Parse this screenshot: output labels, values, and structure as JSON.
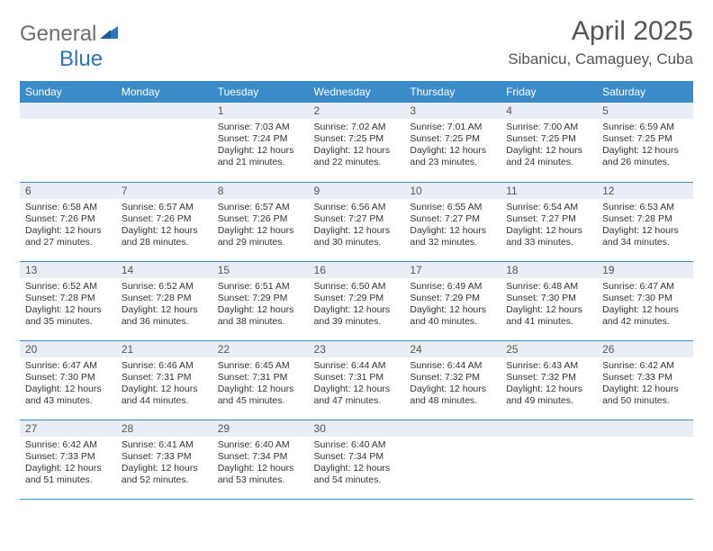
{
  "brand": {
    "name_a": "General",
    "name_b": "Blue"
  },
  "title": "April 2025",
  "location": "Sibanicu, Camaguey, Cuba",
  "colors": {
    "header_bg": "#3b8bc9",
    "header_fg": "#ffffff",
    "daynum_bg": "#e8eef3",
    "text": "#333333",
    "border": "#3b8bc9",
    "logo_gray": "#6e6e6e",
    "logo_blue": "#2f75b5"
  },
  "day_headers": [
    "Sunday",
    "Monday",
    "Tuesday",
    "Wednesday",
    "Thursday",
    "Friday",
    "Saturday"
  ],
  "weeks": [
    [
      {
        "day": "",
        "sunrise": "",
        "sunset": "",
        "daylight": ""
      },
      {
        "day": "",
        "sunrise": "",
        "sunset": "",
        "daylight": ""
      },
      {
        "day": "1",
        "sunrise": "Sunrise: 7:03 AM",
        "sunset": "Sunset: 7:24 PM",
        "daylight": "Daylight: 12 hours and 21 minutes."
      },
      {
        "day": "2",
        "sunrise": "Sunrise: 7:02 AM",
        "sunset": "Sunset: 7:25 PM",
        "daylight": "Daylight: 12 hours and 22 minutes."
      },
      {
        "day": "3",
        "sunrise": "Sunrise: 7:01 AM",
        "sunset": "Sunset: 7:25 PM",
        "daylight": "Daylight: 12 hours and 23 minutes."
      },
      {
        "day": "4",
        "sunrise": "Sunrise: 7:00 AM",
        "sunset": "Sunset: 7:25 PM",
        "daylight": "Daylight: 12 hours and 24 minutes."
      },
      {
        "day": "5",
        "sunrise": "Sunrise: 6:59 AM",
        "sunset": "Sunset: 7:25 PM",
        "daylight": "Daylight: 12 hours and 26 minutes."
      }
    ],
    [
      {
        "day": "6",
        "sunrise": "Sunrise: 6:58 AM",
        "sunset": "Sunset: 7:26 PM",
        "daylight": "Daylight: 12 hours and 27 minutes."
      },
      {
        "day": "7",
        "sunrise": "Sunrise: 6:57 AM",
        "sunset": "Sunset: 7:26 PM",
        "daylight": "Daylight: 12 hours and 28 minutes."
      },
      {
        "day": "8",
        "sunrise": "Sunrise: 6:57 AM",
        "sunset": "Sunset: 7:26 PM",
        "daylight": "Daylight: 12 hours and 29 minutes."
      },
      {
        "day": "9",
        "sunrise": "Sunrise: 6:56 AM",
        "sunset": "Sunset: 7:27 PM",
        "daylight": "Daylight: 12 hours and 30 minutes."
      },
      {
        "day": "10",
        "sunrise": "Sunrise: 6:55 AM",
        "sunset": "Sunset: 7:27 PM",
        "daylight": "Daylight: 12 hours and 32 minutes."
      },
      {
        "day": "11",
        "sunrise": "Sunrise: 6:54 AM",
        "sunset": "Sunset: 7:27 PM",
        "daylight": "Daylight: 12 hours and 33 minutes."
      },
      {
        "day": "12",
        "sunrise": "Sunrise: 6:53 AM",
        "sunset": "Sunset: 7:28 PM",
        "daylight": "Daylight: 12 hours and 34 minutes."
      }
    ],
    [
      {
        "day": "13",
        "sunrise": "Sunrise: 6:52 AM",
        "sunset": "Sunset: 7:28 PM",
        "daylight": "Daylight: 12 hours and 35 minutes."
      },
      {
        "day": "14",
        "sunrise": "Sunrise: 6:52 AM",
        "sunset": "Sunset: 7:28 PM",
        "daylight": "Daylight: 12 hours and 36 minutes."
      },
      {
        "day": "15",
        "sunrise": "Sunrise: 6:51 AM",
        "sunset": "Sunset: 7:29 PM",
        "daylight": "Daylight: 12 hours and 38 minutes."
      },
      {
        "day": "16",
        "sunrise": "Sunrise: 6:50 AM",
        "sunset": "Sunset: 7:29 PM",
        "daylight": "Daylight: 12 hours and 39 minutes."
      },
      {
        "day": "17",
        "sunrise": "Sunrise: 6:49 AM",
        "sunset": "Sunset: 7:29 PM",
        "daylight": "Daylight: 12 hours and 40 minutes."
      },
      {
        "day": "18",
        "sunrise": "Sunrise: 6:48 AM",
        "sunset": "Sunset: 7:30 PM",
        "daylight": "Daylight: 12 hours and 41 minutes."
      },
      {
        "day": "19",
        "sunrise": "Sunrise: 6:47 AM",
        "sunset": "Sunset: 7:30 PM",
        "daylight": "Daylight: 12 hours and 42 minutes."
      }
    ],
    [
      {
        "day": "20",
        "sunrise": "Sunrise: 6:47 AM",
        "sunset": "Sunset: 7:30 PM",
        "daylight": "Daylight: 12 hours and 43 minutes."
      },
      {
        "day": "21",
        "sunrise": "Sunrise: 6:46 AM",
        "sunset": "Sunset: 7:31 PM",
        "daylight": "Daylight: 12 hours and 44 minutes."
      },
      {
        "day": "22",
        "sunrise": "Sunrise: 6:45 AM",
        "sunset": "Sunset: 7:31 PM",
        "daylight": "Daylight: 12 hours and 45 minutes."
      },
      {
        "day": "23",
        "sunrise": "Sunrise: 6:44 AM",
        "sunset": "Sunset: 7:31 PM",
        "daylight": "Daylight: 12 hours and 47 minutes."
      },
      {
        "day": "24",
        "sunrise": "Sunrise: 6:44 AM",
        "sunset": "Sunset: 7:32 PM",
        "daylight": "Daylight: 12 hours and 48 minutes."
      },
      {
        "day": "25",
        "sunrise": "Sunrise: 6:43 AM",
        "sunset": "Sunset: 7:32 PM",
        "daylight": "Daylight: 12 hours and 49 minutes."
      },
      {
        "day": "26",
        "sunrise": "Sunrise: 6:42 AM",
        "sunset": "Sunset: 7:33 PM",
        "daylight": "Daylight: 12 hours and 50 minutes."
      }
    ],
    [
      {
        "day": "27",
        "sunrise": "Sunrise: 6:42 AM",
        "sunset": "Sunset: 7:33 PM",
        "daylight": "Daylight: 12 hours and 51 minutes."
      },
      {
        "day": "28",
        "sunrise": "Sunrise: 6:41 AM",
        "sunset": "Sunset: 7:33 PM",
        "daylight": "Daylight: 12 hours and 52 minutes."
      },
      {
        "day": "29",
        "sunrise": "Sunrise: 6:40 AM",
        "sunset": "Sunset: 7:34 PM",
        "daylight": "Daylight: 12 hours and 53 minutes."
      },
      {
        "day": "30",
        "sunrise": "Sunrise: 6:40 AM",
        "sunset": "Sunset: 7:34 PM",
        "daylight": "Daylight: 12 hours and 54 minutes."
      },
      {
        "day": "",
        "sunrise": "",
        "sunset": "",
        "daylight": ""
      },
      {
        "day": "",
        "sunrise": "",
        "sunset": "",
        "daylight": ""
      },
      {
        "day": "",
        "sunrise": "",
        "sunset": "",
        "daylight": ""
      }
    ]
  ]
}
